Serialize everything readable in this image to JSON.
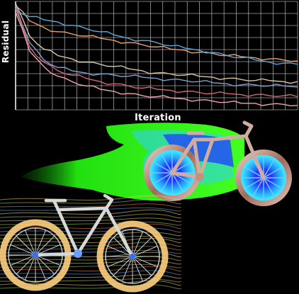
{
  "chart_data": {
    "type": "line",
    "xlabel": "Iteration",
    "ylabel": "Residual",
    "grid": true,
    "xlim": [
      0,
      20
    ],
    "ylim": [
      0,
      10
    ],
    "x": [
      0,
      1,
      2,
      3,
      4,
      5,
      6,
      7,
      8,
      9,
      10,
      11,
      12,
      13,
      14,
      15,
      16,
      17,
      18,
      19,
      20
    ],
    "series": [
      {
        "color": "#e8a070",
        "values": [
          9.6,
          8.2,
          7.6,
          7.2,
          7.0,
          6.8,
          6.6,
          6.4,
          6.2,
          6.0,
          5.8,
          5.6,
          5.5,
          5.3,
          5.2,
          5.0,
          4.9,
          4.8,
          4.7,
          4.6,
          4.5
        ]
      },
      {
        "color": "#5aa8d8",
        "values": [
          9.2,
          8.6,
          8.3,
          8.1,
          7.8,
          7.5,
          7.2,
          6.9,
          6.6,
          6.4,
          6.2,
          5.9,
          5.7,
          5.5,
          5.3,
          5.0,
          4.8,
          4.6,
          4.4,
          4.3,
          4.2
        ]
      },
      {
        "color": "#d9c4a0",
        "values": [
          9.8,
          6.8,
          5.6,
          5.0,
          4.7,
          4.4,
          4.2,
          4.0,
          3.8,
          3.6,
          3.4,
          3.3,
          3.2,
          3.1,
          3.0,
          2.9,
          2.8,
          2.7,
          2.7,
          2.6,
          2.6
        ]
      },
      {
        "color": "#7aa0d0",
        "values": [
          9.6,
          6.2,
          4.6,
          3.9,
          3.6,
          3.4,
          3.3,
          3.2,
          3.1,
          3.0,
          2.9,
          2.8,
          2.7,
          2.6,
          2.5,
          2.4,
          2.3,
          2.3,
          2.2,
          2.2,
          2.1
        ]
      },
      {
        "color": "#d06878",
        "values": [
          9.4,
          5.8,
          4.4,
          3.6,
          3.2,
          2.9,
          2.6,
          2.4,
          2.2,
          2.0,
          1.9,
          1.8,
          1.7,
          1.6,
          1.5,
          1.5,
          1.4,
          1.4,
          1.3,
          1.3,
          1.2
        ]
      },
      {
        "color": "#f0a0b0",
        "values": [
          9.0,
          5.4,
          4.0,
          3.1,
          2.6,
          2.2,
          1.9,
          1.7,
          1.5,
          1.3,
          1.2,
          1.1,
          1.0,
          0.9,
          0.8,
          0.7,
          0.6,
          0.6,
          0.5,
          0.5,
          0.4
        ]
      }
    ]
  },
  "illustrations": {
    "cfd_bike_icon": "bicycle-cfd-icon",
    "streamline_bike_icon": "bicycle-streamlines-icon"
  },
  "colors": {
    "background": "#000000",
    "grid": "#d8d8d8",
    "wake_green": "#33ff22",
    "wake_blue": "#2a4bff",
    "frame": "#c9a59a"
  }
}
